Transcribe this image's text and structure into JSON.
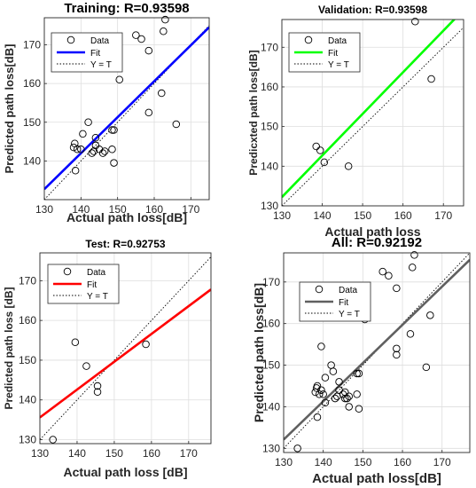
{
  "chart_data": [
    {
      "type": "scatter",
      "title": "Training: R=0.93598",
      "xlabel": "Actual path loss[dB]",
      "ylabel": "Predicted path loss[dB]",
      "xlim": [
        130,
        175
      ],
      "ylim": [
        130,
        177
      ],
      "xticks": [
        "130",
        "140",
        "150",
        "160",
        "170"
      ],
      "yticks": [
        "140",
        "150",
        "160",
        "170"
      ],
      "grid": true,
      "legend_position": "top-left",
      "legend": [
        "Data",
        "Fit",
        "Y = T"
      ],
      "fit_color": "#0000ff",
      "fit": {
        "slope": 0.93,
        "intercept": 11.8
      },
      "points": [
        {
          "x": 138,
          "y": 143.5
        },
        {
          "x": 138.5,
          "y": 137.5
        },
        {
          "x": 139,
          "y": 143
        },
        {
          "x": 138.3,
          "y": 144.5
        },
        {
          "x": 140,
          "y": 143
        },
        {
          "x": 140.5,
          "y": 147
        },
        {
          "x": 142,
          "y": 150
        },
        {
          "x": 143,
          "y": 142
        },
        {
          "x": 143.5,
          "y": 142.5
        },
        {
          "x": 144,
          "y": 146
        },
        {
          "x": 144,
          "y": 144
        },
        {
          "x": 145,
          "y": 143
        },
        {
          "x": 146,
          "y": 142
        },
        {
          "x": 146.5,
          "y": 142.5
        },
        {
          "x": 148.5,
          "y": 148
        },
        {
          "x": 148.5,
          "y": 143
        },
        {
          "x": 149,
          "y": 148
        },
        {
          "x": 149,
          "y": 139.5
        },
        {
          "x": 150.5,
          "y": 161
        },
        {
          "x": 155,
          "y": 172.5
        },
        {
          "x": 156.5,
          "y": 171.5
        },
        {
          "x": 158.5,
          "y": 168.5
        },
        {
          "x": 158.5,
          "y": 152.5
        },
        {
          "x": 162,
          "y": 157.5
        },
        {
          "x": 162.5,
          "y": 173.5
        },
        {
          "x": 163,
          "y": 176.5
        },
        {
          "x": 166,
          "y": 149.5
        }
      ]
    },
    {
      "type": "scatter",
      "title": "Validation: R=0.93598",
      "xlabel": "Actual path loss",
      "ylabel": "Predicxted path loss[dB]",
      "xlim": [
        130,
        175
      ],
      "ylim": [
        130,
        177
      ],
      "xticks": [
        "130",
        "140",
        "150",
        "160",
        "170"
      ],
      "yticks": [
        "130",
        "140",
        "150",
        "160",
        "170"
      ],
      "grid": true,
      "legend_position": "top-left",
      "legend": [
        "Data",
        "Fit",
        "Y = T"
      ],
      "fit_color": "#00ff00",
      "fit": {
        "slope": 1.05,
        "intercept": -4.3
      },
      "points": [
        {
          "x": 138.5,
          "y": 145
        },
        {
          "x": 139.5,
          "y": 144
        },
        {
          "x": 140.5,
          "y": 141
        },
        {
          "x": 146.5,
          "y": 140
        },
        {
          "x": 163,
          "y": 176.5
        },
        {
          "x": 167,
          "y": 162
        }
      ]
    },
    {
      "type": "scatter",
      "title": "Test: R=0.92753",
      "xlabel": "Actual path loss [dB]",
      "ylabel": "Predicted path loss [dB]",
      "xlim": [
        130,
        176
      ],
      "ylim": [
        129,
        177
      ],
      "xticks": [
        "130",
        "140",
        "150",
        "160",
        "170"
      ],
      "yticks": [
        "130",
        "140",
        "150",
        "160",
        "170"
      ],
      "grid": true,
      "legend_position": "top-left",
      "legend": [
        "Data",
        "Fit",
        "Y = T"
      ],
      "fit_color": "#ff0000",
      "fit": {
        "slope": 0.7,
        "intercept": 44.6
      },
      "points": [
        {
          "x": 133.5,
          "y": 130
        },
        {
          "x": 139.5,
          "y": 154.5
        },
        {
          "x": 142.5,
          "y": 148.5
        },
        {
          "x": 145.5,
          "y": 143.5
        },
        {
          "x": 145.5,
          "y": 142
        },
        {
          "x": 158.5,
          "y": 154
        }
      ]
    },
    {
      "type": "scatter",
      "title": "All: R=0.92192",
      "xlabel": "Actual path loss[dB]",
      "ylabel": "Predicted path loss[dB]",
      "xlim": [
        130,
        177
      ],
      "ylim": [
        129,
        177
      ],
      "xticks": [
        "130",
        "140",
        "150",
        "160",
        "170"
      ],
      "yticks": [
        "130",
        "140",
        "150",
        "160",
        "170"
      ],
      "grid": true,
      "legend_position": "top-left",
      "legend": [
        "Data",
        "Fit",
        "Y = T"
      ],
      "fit_color": "#606060",
      "fit": {
        "slope": 0.92,
        "intercept": 12.5
      },
      "points": [
        {
          "x": 133.5,
          "y": 130
        },
        {
          "x": 138,
          "y": 143.5
        },
        {
          "x": 138.5,
          "y": 137.5
        },
        {
          "x": 138.3,
          "y": 144.5
        },
        {
          "x": 138.5,
          "y": 145
        },
        {
          "x": 139,
          "y": 143
        },
        {
          "x": 139.5,
          "y": 144
        },
        {
          "x": 139.5,
          "y": 154.5
        },
        {
          "x": 140,
          "y": 143
        },
        {
          "x": 140.5,
          "y": 147
        },
        {
          "x": 140.5,
          "y": 141
        },
        {
          "x": 142,
          "y": 150
        },
        {
          "x": 142.5,
          "y": 148.5
        },
        {
          "x": 143,
          "y": 142
        },
        {
          "x": 143.5,
          "y": 142.5
        },
        {
          "x": 144,
          "y": 146
        },
        {
          "x": 144,
          "y": 144
        },
        {
          "x": 145,
          "y": 143
        },
        {
          "x": 145.5,
          "y": 143.5
        },
        {
          "x": 145.5,
          "y": 142
        },
        {
          "x": 146,
          "y": 142
        },
        {
          "x": 146.5,
          "y": 140
        },
        {
          "x": 146.5,
          "y": 142.5
        },
        {
          "x": 148.5,
          "y": 148
        },
        {
          "x": 148.5,
          "y": 143
        },
        {
          "x": 149,
          "y": 148
        },
        {
          "x": 149,
          "y": 139.5
        },
        {
          "x": 150.5,
          "y": 161
        },
        {
          "x": 155,
          "y": 172.5
        },
        {
          "x": 156.5,
          "y": 171.5
        },
        {
          "x": 158.5,
          "y": 168.5
        },
        {
          "x": 158.5,
          "y": 152.5
        },
        {
          "x": 158.5,
          "y": 154
        },
        {
          "x": 162,
          "y": 157.5
        },
        {
          "x": 162.5,
          "y": 173.5
        },
        {
          "x": 163,
          "y": 176.5
        },
        {
          "x": 166,
          "y": 149.5
        },
        {
          "x": 167,
          "y": 162
        }
      ]
    }
  ]
}
